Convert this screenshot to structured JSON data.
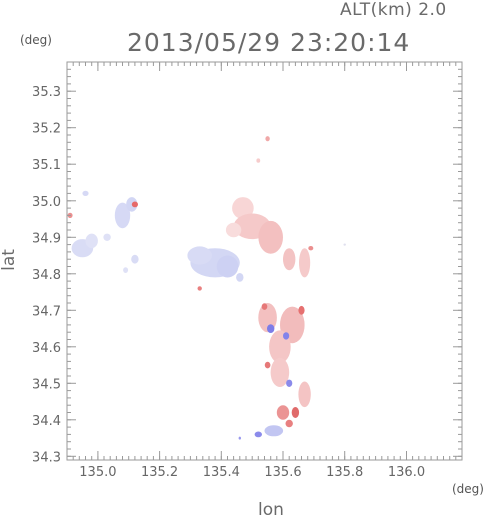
{
  "header": {
    "altitude_label": "ALT(km) 2.0",
    "timestamp": "2013/05/29 23:20:14"
  },
  "chart_data": {
    "type": "heatmap",
    "xlabel": "lon",
    "ylabel": "lat",
    "x_unit": "(deg)",
    "y_unit": "(deg)",
    "xlim": [
      134.9,
      136.18
    ],
    "ylim": [
      34.29,
      35.38
    ],
    "x_ticks": [
      135.0,
      135.2,
      135.4,
      135.6,
      135.8,
      136.0
    ],
    "x_tick_labels": [
      "135.0",
      "135.2",
      "135.4",
      "135.6",
      "135.8",
      "136.0"
    ],
    "y_ticks": [
      34.3,
      34.4,
      34.5,
      34.6,
      34.7,
      34.8,
      34.9,
      35.0,
      35.1,
      35.2,
      35.3
    ],
    "y_tick_labels": [
      "34.3",
      "34.4",
      "34.5",
      "34.6",
      "34.7",
      "34.8",
      "34.9",
      "35.0",
      "35.1",
      "35.2",
      "35.3"
    ],
    "grid": false,
    "colors": {
      "approaching_strong": "#6a6ae8",
      "approaching_weak": "#d6d9f5",
      "receding_strong": "#e86a6a",
      "receding_weak": "#f7d0d0"
    },
    "echo_regions": [
      {
        "lon": 134.95,
        "lat": 34.87,
        "rx": 0.035,
        "ry": 0.025,
        "color": "#d9dcf5"
      },
      {
        "lon": 134.98,
        "lat": 34.89,
        "rx": 0.02,
        "ry": 0.02,
        "color": "#dfe1f6"
      },
      {
        "lon": 135.03,
        "lat": 34.9,
        "rx": 0.012,
        "ry": 0.01,
        "color": "#dfe1f6"
      },
      {
        "lon": 134.91,
        "lat": 34.96,
        "rx": 0.008,
        "ry": 0.007,
        "color": "#eb9090"
      },
      {
        "lon": 134.96,
        "lat": 35.02,
        "rx": 0.01,
        "ry": 0.007,
        "color": "#d6d9f5"
      },
      {
        "lon": 135.08,
        "lat": 34.96,
        "rx": 0.025,
        "ry": 0.035,
        "color": "#d6d9f5"
      },
      {
        "lon": 135.11,
        "lat": 34.99,
        "rx": 0.018,
        "ry": 0.02,
        "color": "#d2d6f4"
      },
      {
        "lon": 135.12,
        "lat": 34.99,
        "rx": 0.01,
        "ry": 0.008,
        "color": "#e66a6a"
      },
      {
        "lon": 135.12,
        "lat": 34.84,
        "rx": 0.012,
        "ry": 0.012,
        "color": "#d9dcf5"
      },
      {
        "lon": 135.09,
        "lat": 34.81,
        "rx": 0.008,
        "ry": 0.008,
        "color": "#dfe1f6"
      },
      {
        "lon": 135.38,
        "lat": 34.83,
        "rx": 0.08,
        "ry": 0.04,
        "color": "#d3d7f4"
      },
      {
        "lon": 135.33,
        "lat": 34.85,
        "rx": 0.04,
        "ry": 0.025,
        "color": "#d8dbf5"
      },
      {
        "lon": 135.42,
        "lat": 34.82,
        "rx": 0.035,
        "ry": 0.03,
        "color": "#cdd1f3"
      },
      {
        "lon": 135.46,
        "lat": 34.79,
        "rx": 0.012,
        "ry": 0.012,
        "color": "#d3d7f4"
      },
      {
        "lon": 135.33,
        "lat": 34.76,
        "rx": 0.007,
        "ry": 0.006,
        "color": "#e98080"
      },
      {
        "lon": 135.47,
        "lat": 34.98,
        "rx": 0.035,
        "ry": 0.03,
        "color": "#f8d6d6"
      },
      {
        "lon": 135.5,
        "lat": 34.93,
        "rx": 0.06,
        "ry": 0.035,
        "color": "#f5c9c9"
      },
      {
        "lon": 135.56,
        "lat": 34.9,
        "rx": 0.04,
        "ry": 0.045,
        "color": "#f3c0c0"
      },
      {
        "lon": 135.44,
        "lat": 34.92,
        "rx": 0.025,
        "ry": 0.02,
        "color": "#f8dcdc"
      },
      {
        "lon": 135.55,
        "lat": 35.17,
        "rx": 0.007,
        "ry": 0.007,
        "color": "#f0a8a8"
      },
      {
        "lon": 135.52,
        "lat": 35.11,
        "rx": 0.006,
        "ry": 0.006,
        "color": "#f6cccc"
      },
      {
        "lon": 135.62,
        "lat": 34.84,
        "rx": 0.02,
        "ry": 0.03,
        "color": "#f3c3c3"
      },
      {
        "lon": 135.67,
        "lat": 34.83,
        "rx": 0.018,
        "ry": 0.04,
        "color": "#f5caca"
      },
      {
        "lon": 135.69,
        "lat": 34.87,
        "rx": 0.008,
        "ry": 0.006,
        "color": "#eb8f8f"
      },
      {
        "lon": 135.55,
        "lat": 34.68,
        "rx": 0.03,
        "ry": 0.04,
        "color": "#f3c0c0"
      },
      {
        "lon": 135.63,
        "lat": 34.66,
        "rx": 0.04,
        "ry": 0.05,
        "color": "#f2bcbc"
      },
      {
        "lon": 135.59,
        "lat": 34.6,
        "rx": 0.035,
        "ry": 0.045,
        "color": "#f4c6c6"
      },
      {
        "lon": 135.56,
        "lat": 34.65,
        "rx": 0.012,
        "ry": 0.012,
        "color": "#7d7de8"
      },
      {
        "lon": 135.61,
        "lat": 34.63,
        "rx": 0.01,
        "ry": 0.01,
        "color": "#8383ea"
      },
      {
        "lon": 135.54,
        "lat": 34.71,
        "rx": 0.009,
        "ry": 0.009,
        "color": "#e67878"
      },
      {
        "lon": 135.66,
        "lat": 34.7,
        "rx": 0.01,
        "ry": 0.012,
        "color": "#e67070"
      },
      {
        "lon": 135.59,
        "lat": 34.53,
        "rx": 0.03,
        "ry": 0.04,
        "color": "#f5caca"
      },
      {
        "lon": 135.62,
        "lat": 34.5,
        "rx": 0.01,
        "ry": 0.01,
        "color": "#8a8aea"
      },
      {
        "lon": 135.55,
        "lat": 34.55,
        "rx": 0.009,
        "ry": 0.009,
        "color": "#e67878"
      },
      {
        "lon": 135.67,
        "lat": 34.47,
        "rx": 0.02,
        "ry": 0.035,
        "color": "#f4c4c4"
      },
      {
        "lon": 135.6,
        "lat": 34.42,
        "rx": 0.02,
        "ry": 0.02,
        "color": "#eb9494"
      },
      {
        "lon": 135.64,
        "lat": 34.42,
        "rx": 0.012,
        "ry": 0.015,
        "color": "#e06a6a"
      },
      {
        "lon": 135.57,
        "lat": 34.37,
        "rx": 0.03,
        "ry": 0.015,
        "color": "#c2c6f2"
      },
      {
        "lon": 135.52,
        "lat": 34.36,
        "rx": 0.012,
        "ry": 0.008,
        "color": "#8b8beb"
      },
      {
        "lon": 135.62,
        "lat": 34.39,
        "rx": 0.012,
        "ry": 0.01,
        "color": "#e88080"
      },
      {
        "lon": 135.46,
        "lat": 34.35,
        "rx": 0.004,
        "ry": 0.004,
        "color": "#9999ee"
      },
      {
        "lon": 135.8,
        "lat": 34.88,
        "rx": 0.004,
        "ry": 0.003,
        "color": "#e0e0ee"
      }
    ]
  }
}
